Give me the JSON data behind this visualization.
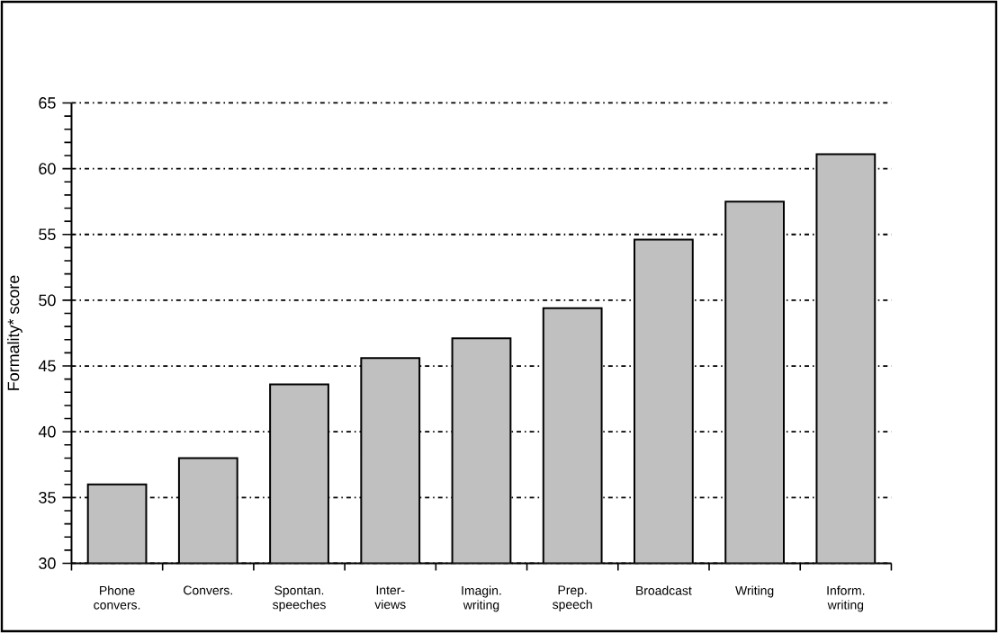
{
  "chart_data": {
    "type": "bar",
    "ylabel": "Formality* score",
    "categories": [
      "Phone convers.",
      "Convers.",
      "Spontan. speeches",
      "Inter- views",
      "Imagin. writing",
      "Prep. speech",
      "Broadcast",
      "Writing",
      "Inform. writing"
    ],
    "values": [
      36.0,
      38.0,
      43.6,
      45.6,
      47.1,
      49.4,
      54.6,
      57.5,
      61.1
    ],
    "color": "#c0c0c0",
    "ylim": [
      30,
      65
    ],
    "yticks": [
      30,
      35,
      40,
      45,
      50,
      55,
      60,
      65
    ],
    "grid": "y"
  }
}
